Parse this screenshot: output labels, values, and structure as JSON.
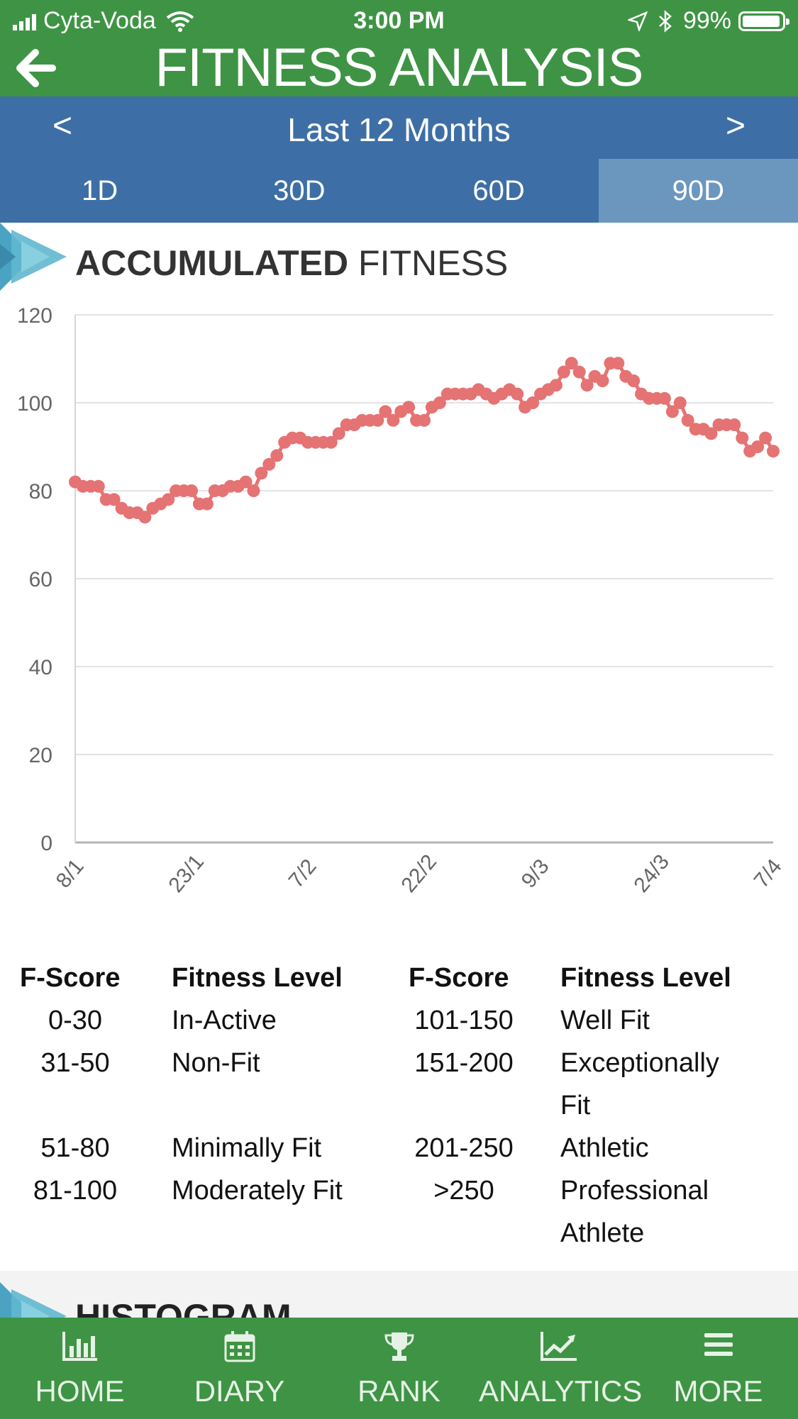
{
  "status": {
    "carrier": "Cyta-Voda",
    "time": "3:00 PM",
    "battery": "99%"
  },
  "header": {
    "title": "FITNESS ANALYSIS",
    "back_icon": "back-arrow-icon"
  },
  "period": {
    "prev": "<",
    "label": "Last 12 Months",
    "next": ">"
  },
  "ranges": [
    {
      "label": "1D",
      "active": false
    },
    {
      "label": "30D",
      "active": false
    },
    {
      "label": "60D",
      "active": false
    },
    {
      "label": "90D",
      "active": true
    }
  ],
  "section": {
    "title_bold": "ACCUMULATED",
    "title_rest": " FITNESS"
  },
  "chart_data": {
    "type": "line",
    "title": "ACCUMULATED FITNESS",
    "xlabel": "",
    "ylabel": "",
    "ylim": [
      0,
      120
    ],
    "yticks": [
      0,
      20,
      40,
      60,
      80,
      100,
      120
    ],
    "xticks": [
      "8/1",
      "23/1",
      "7/2",
      "22/2",
      "9/3",
      "24/3",
      "7/4"
    ],
    "grid": true,
    "color": "#e57373",
    "series": [
      {
        "name": "",
        "values": [
          82,
          81,
          81,
          81,
          78,
          78,
          76,
          75,
          75,
          74,
          76,
          77,
          78,
          80,
          80,
          80,
          77,
          77,
          80,
          80,
          81,
          81,
          82,
          80,
          84,
          86,
          88,
          91,
          92,
          92,
          91,
          91,
          91,
          91,
          93,
          95,
          95,
          96,
          96,
          96,
          98,
          96,
          98,
          99,
          96,
          96,
          99,
          100,
          102,
          102,
          102,
          102,
          103,
          102,
          101,
          102,
          103,
          102,
          99,
          100,
          102,
          103,
          104,
          107,
          109,
          107,
          104,
          106,
          105,
          109,
          109,
          106,
          105,
          102,
          101,
          101,
          101,
          98,
          100,
          96,
          94,
          94,
          93,
          95,
          95,
          95,
          92,
          89,
          90,
          92,
          89
        ]
      }
    ]
  },
  "legend": {
    "headers": [
      "F-Score",
      "Fitness Level",
      "F-Score",
      "Fitness Level"
    ],
    "rows": [
      {
        "s1": "0-30",
        "l1": "In-Active",
        "s2": "101-150",
        "l2": "Well Fit"
      },
      {
        "s1": "31-50",
        "l1": "Non-Fit",
        "s2": "151-200",
        "l2": "Exceptionally",
        "l2b": "Fit"
      },
      {
        "s1": "51-80",
        "l1": "Minimally Fit",
        "s2": "201-250",
        "l2": "Athletic"
      },
      {
        "s1": "81-100",
        "l1": "Moderately Fit",
        "s2": ">250",
        "l2": "Professional",
        "l2b": "Athlete"
      }
    ]
  },
  "histogram": {
    "title": "HISTOGRAM"
  },
  "tabs": [
    {
      "label": "HOME",
      "icon": "bar-chart-icon"
    },
    {
      "label": "DIARY",
      "icon": "calendar-icon"
    },
    {
      "label": "RANK",
      "icon": "trophy-icon"
    },
    {
      "label": "ANALYTICS",
      "icon": "line-chart-icon"
    },
    {
      "label": "MORE",
      "icon": "menu-icon"
    }
  ]
}
